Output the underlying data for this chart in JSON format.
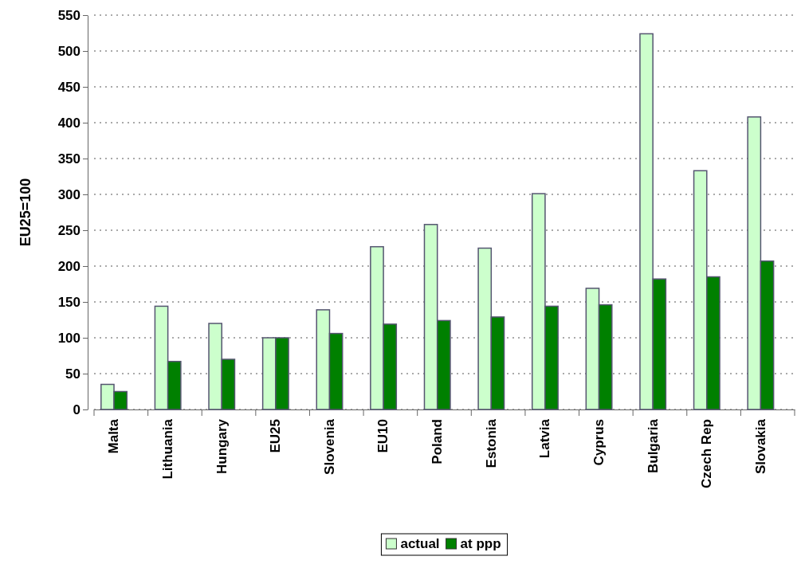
{
  "chart_data": {
    "type": "bar",
    "ylabel": "EU25=100",
    "categories": [
      "Malta",
      "Lithuania",
      "Hungary",
      "EU25",
      "Slovenia",
      "EU10",
      "Poland",
      "Estonia",
      "Latvia",
      "Cyprus",
      "Bulgaria",
      "Czech Rep",
      "Slovakia"
    ],
    "series": [
      {
        "name": "actual",
        "color": "#ccffcc",
        "values": [
          35,
          144,
          120,
          100,
          139,
          227,
          258,
          225,
          301,
          169,
          524,
          333,
          408
        ]
      },
      {
        "name": "at ppp",
        "color": "#008000",
        "values": [
          25,
          67,
          70,
          100,
          106,
          119,
          124,
          129,
          144,
          146,
          182,
          185,
          207
        ]
      }
    ],
    "ylim": [
      0,
      550
    ],
    "yticks": [
      0,
      50,
      100,
      150,
      200,
      250,
      300,
      350,
      400,
      450,
      500,
      550
    ],
    "grid": "y",
    "legend": "bottom"
  }
}
